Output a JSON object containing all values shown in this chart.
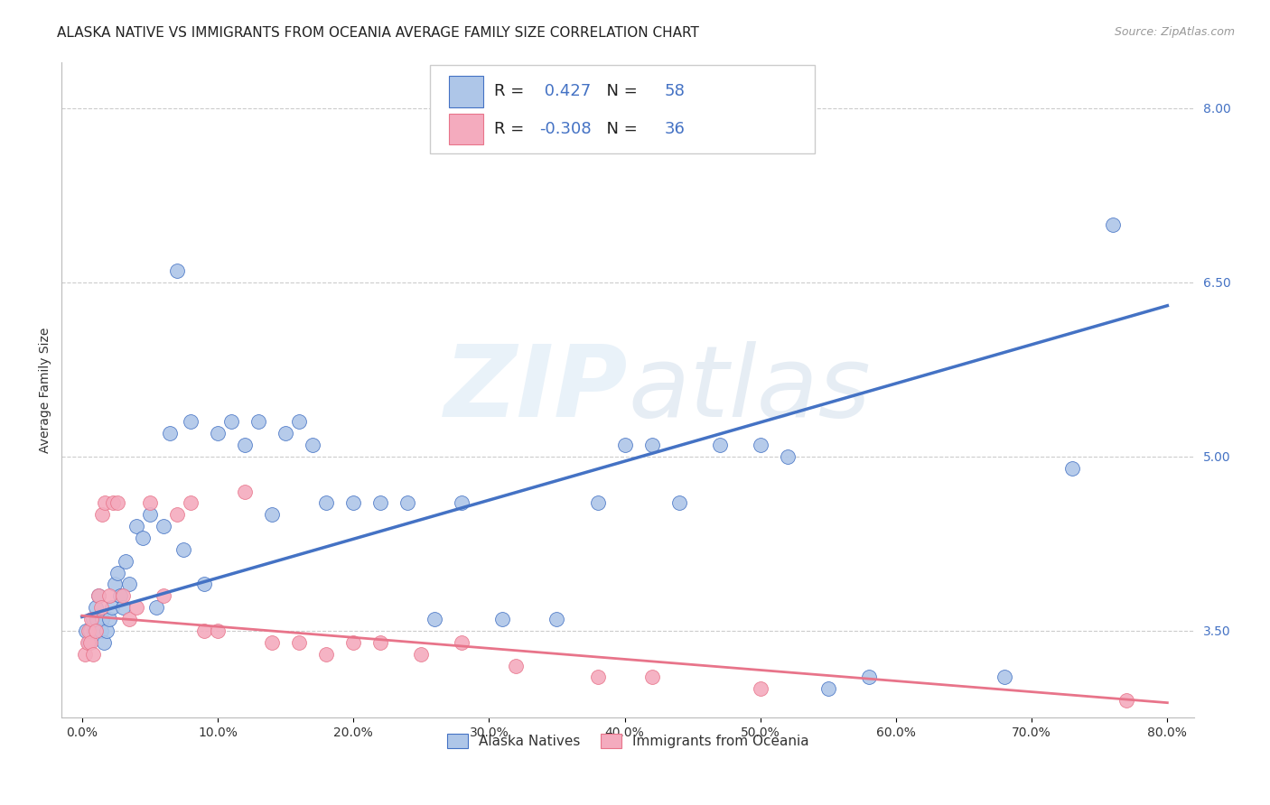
{
  "title": "ALASKA NATIVE VS IMMIGRANTS FROM OCEANIA AVERAGE FAMILY SIZE CORRELATION CHART",
  "source": "Source: ZipAtlas.com",
  "ylabel": "Average Family Size",
  "right_yticks": [
    3.5,
    5.0,
    6.5,
    8.0
  ],
  "xlim": [
    -1.5,
    82.0
  ],
  "ylim": [
    2.75,
    8.4
  ],
  "blue_R": 0.427,
  "blue_N": 58,
  "pink_R": -0.308,
  "pink_N": 36,
  "blue_line_color": "#4472C4",
  "pink_line_color": "#E8748A",
  "blue_scatter_color": "#AEC6E8",
  "pink_scatter_color": "#F4ABBE",
  "grid_color": "#CCCCCC",
  "background_color": "#FFFFFF",
  "title_fontsize": 11,
  "label_fontsize": 10,
  "tick_fontsize": 10,
  "watermark_text": "ZIPatlas",
  "legend_label_blue": "Alaska Natives",
  "legend_label_pink": "Immigrants from Oceania",
  "blue_x": [
    0.3,
    0.5,
    0.6,
    0.8,
    0.9,
    1.0,
    1.1,
    1.2,
    1.4,
    1.5,
    1.6,
    1.8,
    2.0,
    2.2,
    2.4,
    2.6,
    2.8,
    3.0,
    3.2,
    3.5,
    4.0,
    4.5,
    5.0,
    5.5,
    6.0,
    6.5,
    7.0,
    7.5,
    8.0,
    9.0,
    10.0,
    11.0,
    12.0,
    13.0,
    14.0,
    15.0,
    16.0,
    17.0,
    18.0,
    20.0,
    22.0,
    24.0,
    26.0,
    28.0,
    31.0,
    35.0,
    38.0,
    40.0,
    42.0,
    44.0,
    47.0,
    50.0,
    52.0,
    55.0,
    58.0,
    68.0,
    73.0,
    76.0
  ],
  "blue_y": [
    3.5,
    3.4,
    3.5,
    3.6,
    3.5,
    3.7,
    3.6,
    3.8,
    3.5,
    3.6,
    3.4,
    3.5,
    3.6,
    3.7,
    3.9,
    4.0,
    3.8,
    3.7,
    4.1,
    3.9,
    4.4,
    4.3,
    4.5,
    3.7,
    4.4,
    5.2,
    6.6,
    4.2,
    5.3,
    3.9,
    5.2,
    5.3,
    5.1,
    5.3,
    4.5,
    5.2,
    5.3,
    5.1,
    4.6,
    4.6,
    4.6,
    4.6,
    3.6,
    4.6,
    3.6,
    3.6,
    4.6,
    5.1,
    5.1,
    4.6,
    5.1,
    5.1,
    5.0,
    3.0,
    3.1,
    3.1,
    4.9,
    7.0
  ],
  "pink_x": [
    0.2,
    0.4,
    0.5,
    0.6,
    0.7,
    0.8,
    1.0,
    1.2,
    1.4,
    1.5,
    1.7,
    2.0,
    2.3,
    2.6,
    3.0,
    3.5,
    4.0,
    5.0,
    6.0,
    7.0,
    8.0,
    9.0,
    10.0,
    12.0,
    14.0,
    16.0,
    18.0,
    20.0,
    22.0,
    25.0,
    28.0,
    32.0,
    38.0,
    42.0,
    50.0,
    77.0
  ],
  "pink_y": [
    3.3,
    3.4,
    3.5,
    3.4,
    3.6,
    3.3,
    3.5,
    3.8,
    3.7,
    4.5,
    4.6,
    3.8,
    4.6,
    4.6,
    3.8,
    3.6,
    3.7,
    4.6,
    3.8,
    4.5,
    4.6,
    3.5,
    3.5,
    4.7,
    3.4,
    3.4,
    3.3,
    3.4,
    3.4,
    3.3,
    3.4,
    3.2,
    3.1,
    3.1,
    3.0,
    2.9
  ],
  "blue_line_x0": 0,
  "blue_line_x1": 80,
  "blue_line_y0": 3.62,
  "blue_line_y1": 6.3,
  "pink_line_x0": 0,
  "pink_line_x1": 80,
  "pink_line_y0": 3.63,
  "pink_line_y1": 2.88
}
